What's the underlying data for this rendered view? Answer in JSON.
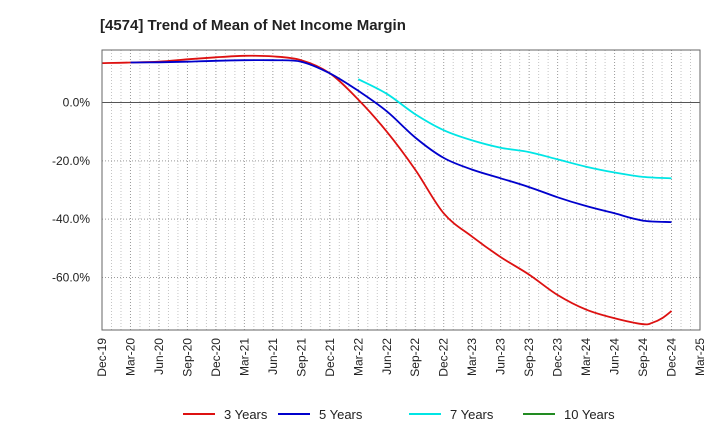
{
  "chart_data": {
    "type": "line",
    "title": "[4574]  Trend of Mean of Net Income Margin",
    "xlabel": "",
    "ylabel": "",
    "x_ticks": [
      "Dec-19",
      "Mar-20",
      "Jun-20",
      "Sep-20",
      "Dec-20",
      "Mar-21",
      "Jun-21",
      "Sep-21",
      "Dec-21",
      "Mar-22",
      "Jun-22",
      "Sep-22",
      "Dec-22",
      "Mar-23",
      "Jun-23",
      "Sep-23",
      "Dec-23",
      "Mar-24",
      "Jun-24",
      "Sep-24",
      "Dec-24",
      "Mar-25"
    ],
    "y_ticks": [
      "0.0%",
      "-20.0%",
      "-40.0%",
      "-60.0%"
    ],
    "y_tick_values": [
      0,
      -20,
      -40,
      -60
    ],
    "ylim": [
      -78,
      18
    ],
    "grid": true,
    "legend_position": "bottom",
    "series": [
      {
        "name": "3 Years",
        "color": "#dd1111",
        "x": [
          "Dec-19",
          "Mar-20",
          "Jun-20",
          "Sep-20",
          "Dec-20",
          "Mar-21",
          "Jun-21",
          "Sep-21",
          "Dec-21",
          "Mar-22",
          "Jun-22",
          "Sep-22",
          "Dec-22",
          "Mar-23",
          "Jun-23",
          "Sep-23",
          "Dec-23",
          "Mar-24",
          "Jun-24",
          "Sep-24",
          "Oct-24",
          "Nov-24",
          "Dec-24"
        ],
        "values": [
          13.5,
          13.7,
          14.0,
          14.8,
          15.5,
          16.0,
          15.8,
          14.5,
          10.0,
          1.0,
          -10.0,
          -23.0,
          -38.0,
          -46.0,
          -53.0,
          -59.0,
          -66.0,
          -71.0,
          -74.0,
          -76.0,
          -75.5,
          -74.0,
          -71.5
        ]
      },
      {
        "name": "5 Years",
        "color": "#0000cc",
        "x": [
          "Mar-20",
          "Jun-20",
          "Sep-20",
          "Dec-20",
          "Mar-21",
          "Jun-21",
          "Sep-21",
          "Dec-21",
          "Mar-22",
          "Jun-22",
          "Sep-22",
          "Dec-22",
          "Mar-23",
          "Jun-23",
          "Sep-23",
          "Dec-23",
          "Mar-24",
          "Jun-24",
          "Sep-24",
          "Dec-24"
        ],
        "values": [
          13.7,
          13.8,
          14.0,
          14.3,
          14.5,
          14.5,
          14.0,
          10.0,
          4.0,
          -3.0,
          -12.0,
          -19.0,
          -23.0,
          -26.0,
          -29.0,
          -32.5,
          -35.5,
          -38.0,
          -40.5,
          -41.0
        ]
      },
      {
        "name": "7 Years",
        "color": "#00e5e5",
        "x": [
          "Mar-22",
          "Jun-22",
          "Sep-22",
          "Dec-22",
          "Mar-23",
          "Jun-23",
          "Sep-23",
          "Dec-23",
          "Mar-24",
          "Jun-24",
          "Sep-24",
          "Dec-24"
        ],
        "values": [
          8.0,
          3.0,
          -4.0,
          -9.5,
          -13.0,
          -15.5,
          -17.0,
          -19.5,
          -22.0,
          -24.0,
          -25.5,
          -26.0
        ]
      },
      {
        "name": "10 Years",
        "color": "#228b22",
        "x": [],
        "values": []
      }
    ]
  }
}
